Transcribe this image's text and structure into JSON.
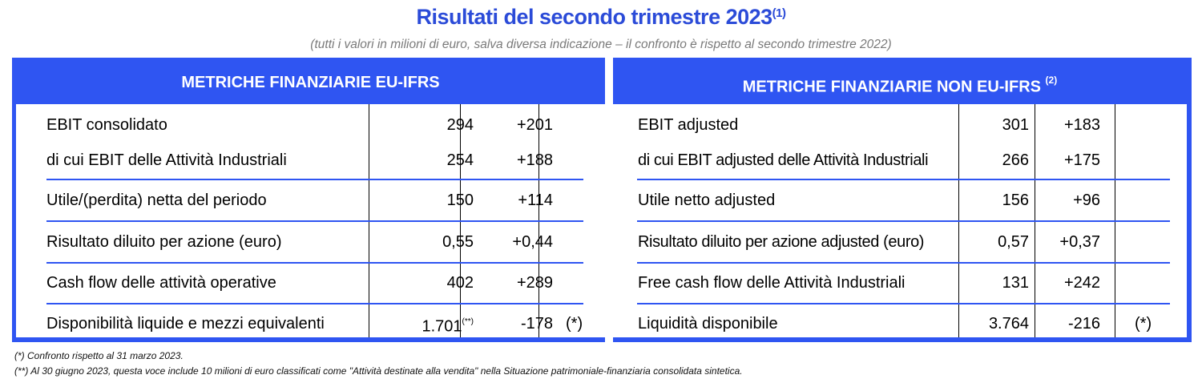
{
  "title": "Risultati del secondo trimestre 2023",
  "title_note": "(1)",
  "subtitle": "(tutti i valori in milioni di euro, salva diversa indicazione – il confronto è rispetto al secondo trimestre 2022)",
  "left": {
    "header": "METRICHE FINANZIARIE EU-IFRS",
    "rows": [
      {
        "label": "EBIT consolidato",
        "value": "294",
        "value_note": "",
        "change": "+201",
        "note": ""
      },
      {
        "label": "di cui EBIT delle Attività Industriali",
        "value": "254",
        "value_note": "",
        "change": "+188",
        "note": ""
      },
      {
        "label": "Utile/(perdita) netta del periodo",
        "value": "150",
        "value_note": "",
        "change": "+114",
        "note": ""
      },
      {
        "label": "Risultato diluito per azione (euro)",
        "value": "0,55",
        "value_note": "",
        "change": "+0,44",
        "note": ""
      },
      {
        "label": "Cash flow delle attività operative",
        "value": "402",
        "value_note": "",
        "change": "+289",
        "note": ""
      },
      {
        "label": "Disponibilità liquide e mezzi equivalenti",
        "value": "1.701",
        "value_note": "(**)",
        "change": "-178",
        "note": "(*)"
      }
    ]
  },
  "right": {
    "header": "METRICHE FINANZIARIE NON EU-IFRS",
    "header_note": "(2)",
    "rows": [
      {
        "label": "EBIT adjusted",
        "value": "301",
        "change": "+183",
        "note": ""
      },
      {
        "label": "di cui EBIT adjusted delle Attività Industriali",
        "value": "266",
        "change": "+175",
        "note": ""
      },
      {
        "label": "Utile netto adjusted",
        "value": "156",
        "change": "+96",
        "note": ""
      },
      {
        "label": "Risultato diluito per azione adjusted (euro)",
        "value": "0,57",
        "change": "+0,37",
        "note": ""
      },
      {
        "label": "Free cash flow delle Attività Industriali",
        "value": "131",
        "change": "+242",
        "note": ""
      },
      {
        "label": "Liquidità disponibile",
        "value": "3.764",
        "change": "-216",
        "note": "(*)"
      }
    ]
  },
  "footnotes": [
    "(*)  Confronto rispetto al 31 marzo 2023.",
    "(**) Al 30 giugno 2023, questa voce include 10 milioni di euro classificati come \"Attività destinate alla vendita\" nella Situazione patrimoniale-finanziaria consolidata sintetica."
  ]
}
